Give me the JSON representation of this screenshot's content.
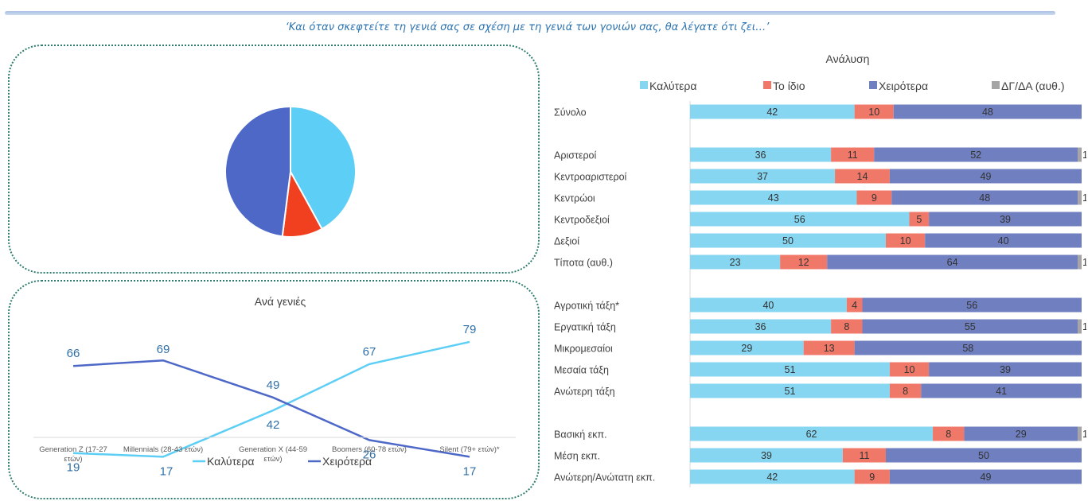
{
  "subtitle": "‘Και όταν σκεφτείτε τη γενιά σας σε σχέση με τη γενιά των γονιών σας, θα λέγατε ότι ζει…’",
  "colors": {
    "better": "#5dcef5",
    "same": "#f0401f",
    "worse": "#4e68c8",
    "better_bar": "#86d6f2",
    "same_bar": "#f07868",
    "worse_bar": "#6f7fbf",
    "dk_bar": "#a5a5a5"
  },
  "chart_data": [
    {
      "type": "pie",
      "title": "",
      "slices": [
        {
          "name": "Καλύτερα",
          "value": 42
        },
        {
          "name": "Το ίδιο",
          "value": 10
        },
        {
          "name": "Χειρότερα",
          "value": 48
        }
      ]
    },
    {
      "type": "line",
      "title": "Ανά γενιές",
      "categories": [
        "Generation Z (17-27 ετών)",
        "Millennials (28-43 ετών)",
        "Generation X (44-59 ετών)",
        "Boomers (60-78 ετών)",
        "Silent (79+ ετών)*"
      ],
      "series": [
        {
          "name": "Καλύτερα",
          "values": [
            19,
            17,
            42,
            67,
            79
          ]
        },
        {
          "name": "Χειρότερα",
          "values": [
            66,
            69,
            49,
            26,
            17
          ]
        }
      ],
      "legend": "bottom"
    },
    {
      "type": "bar",
      "orientation": "horizontal-stacked",
      "title": "Ανάλυση",
      "legend_position": "top",
      "series_names": [
        "Καλύτερα",
        "Το ίδιο",
        "Χειρότερα",
        "ΔΓ/ΔΑ (αυθ.)"
      ],
      "rows": [
        {
          "label": "Σύνολο",
          "values": [
            42,
            10,
            48,
            0
          ]
        },
        {
          "label": "",
          "values": []
        },
        {
          "label": "Αριστεροί",
          "values": [
            36,
            11,
            52,
            1
          ]
        },
        {
          "label": "Κεντροαριστεροί",
          "values": [
            37,
            14,
            49,
            0
          ]
        },
        {
          "label": "Κεντρώοι",
          "values": [
            43,
            9,
            48,
            1
          ]
        },
        {
          "label": "Κεντροδεξιοί",
          "values": [
            56,
            5,
            39,
            0
          ]
        },
        {
          "label": "Δεξιοί",
          "values": [
            50,
            10,
            40,
            0
          ]
        },
        {
          "label": "Τίποτα (αυθ.)",
          "values": [
            23,
            12,
            64,
            1
          ]
        },
        {
          "label": "",
          "values": []
        },
        {
          "label": "Αγροτική τάξη*",
          "values": [
            40,
            4,
            56,
            0
          ]
        },
        {
          "label": "Εργατική τάξη",
          "values": [
            36,
            8,
            55,
            1
          ]
        },
        {
          "label": "Μικρομεσαίοι",
          "values": [
            29,
            13,
            58,
            0
          ]
        },
        {
          "label": "Μεσαία τάξη",
          "values": [
            51,
            10,
            39,
            0
          ]
        },
        {
          "label": "Ανώτερη τάξη",
          "values": [
            51,
            8,
            41,
            0
          ]
        },
        {
          "label": "",
          "values": []
        },
        {
          "label": "Βασική εκπ.",
          "values": [
            62,
            8,
            29,
            1
          ]
        },
        {
          "label": "Μέση εκπ.",
          "values": [
            39,
            11,
            50,
            0
          ]
        },
        {
          "label": "Ανώτερη/Ανώτατη εκπ.",
          "values": [
            42,
            9,
            49,
            0
          ]
        }
      ]
    }
  ]
}
